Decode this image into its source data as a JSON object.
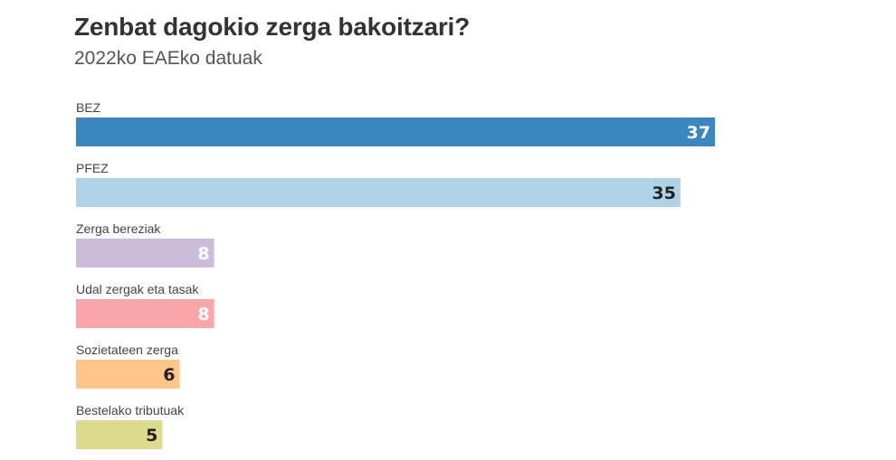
{
  "chart_data": {
    "type": "bar",
    "orientation": "horizontal",
    "title": "Zenbat dagokio zerga bakoitzari?",
    "subtitle": "2022ko EAEko datuak",
    "categories": [
      "BEZ",
      "PFEZ",
      "Zerga bereziak",
      "Udal zergak eta tasak",
      "Sozietateen zerga",
      "Bestelako tributuak"
    ],
    "values": [
      37,
      35,
      8,
      8,
      6,
      5
    ],
    "colors": [
      "#3a86c0",
      "#aed3e7",
      "#cbbcd9",
      "#faa5a7",
      "#fdc586",
      "#dcdc8c"
    ],
    "label_colors": [
      "#ffffff",
      "#222222",
      "#ffffff",
      "#ffffff",
      "#222222",
      "#222222"
    ],
    "xlim": [
      0,
      37
    ],
    "grid": false,
    "legend": "none"
  }
}
